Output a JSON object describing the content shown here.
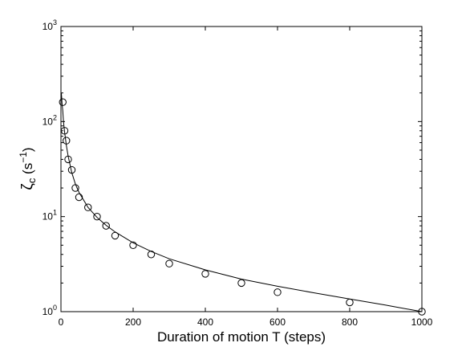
{
  "chart_data": {
    "type": "scatter",
    "title": "",
    "xlabel": "Duration of motion T (steps)",
    "ylabel": {
      "symbol": "ζ",
      "subscript": "c",
      "unit_open": " (s",
      "unit_exp": "−1",
      "unit_close": ")"
    },
    "xlim": [
      0,
      1000
    ],
    "ylim": [
      1,
      1000
    ],
    "yscale": "log",
    "grid": false,
    "xticks": [
      0,
      200,
      400,
      600,
      800,
      1000
    ],
    "yticks": [
      {
        "base": "10",
        "exp": "0",
        "value": 1
      },
      {
        "base": "10",
        "exp": "1",
        "value": 10
      },
      {
        "base": "10",
        "exp": "2",
        "value": 100
      },
      {
        "base": "10",
        "exp": "3",
        "value": 1000
      }
    ],
    "series": [
      {
        "style": "markers",
        "marker": "open-circle",
        "x": [
          5,
          10,
          15,
          20,
          30,
          40,
          50,
          75,
          100,
          125,
          150,
          200,
          250,
          300,
          400,
          500,
          600,
          800,
          1000
        ],
        "y": [
          160,
          80,
          63,
          40,
          31,
          20,
          16,
          12.5,
          10,
          8,
          6.3,
          5,
          4,
          3.2,
          2.5,
          2,
          1.6,
          1.25,
          1
        ]
      },
      {
        "style": "line",
        "x": [
          1,
          2,
          3,
          5,
          7,
          10,
          15,
          20,
          30,
          40,
          50,
          75,
          100,
          125,
          150,
          200,
          250,
          300,
          400,
          500,
          600,
          700,
          800,
          900,
          1000
        ],
        "y": [
          200,
          180,
          155,
          130,
          100,
          78,
          56,
          43,
          29,
          22,
          18,
          12.5,
          9.8,
          8.1,
          6.9,
          5.3,
          4.3,
          3.6,
          2.75,
          2.2,
          1.85,
          1.58,
          1.36,
          1.17,
          1.0
        ]
      }
    ]
  }
}
